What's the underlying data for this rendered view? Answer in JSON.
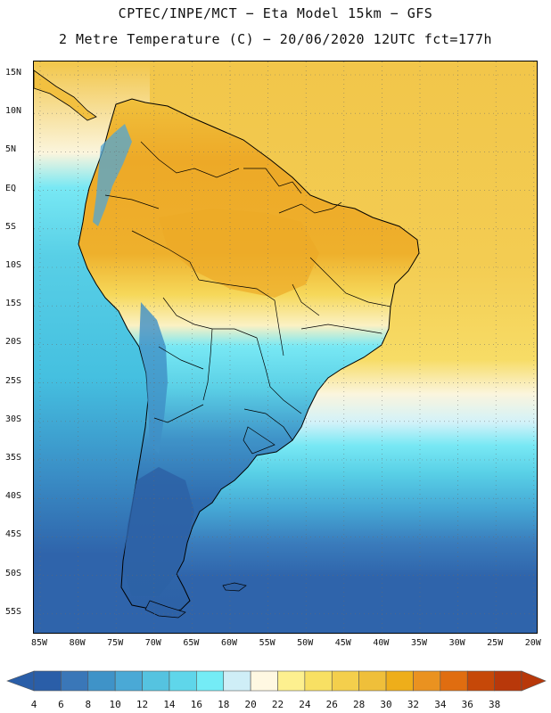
{
  "title_line1": "CPTEC/INPE/MCT −  Eta Model 15km − GFS",
  "title_line2": "2 Metre Temperature (C) − 20/06/2020 12UTC fct=177h",
  "lat_labels": [
    "15N",
    "10N",
    "5N",
    "EQ",
    "5S",
    "10S",
    "15S",
    "20S",
    "25S",
    "30S",
    "35S",
    "40S",
    "45S",
    "50S",
    "55S"
  ],
  "lon_labels": [
    "85W",
    "80W",
    "75W",
    "70W",
    "65W",
    "60W",
    "55W",
    "50W",
    "45W",
    "40W",
    "35W",
    "30W",
    "25W",
    "20W"
  ],
  "colorbar": {
    "values": [
      4,
      6,
      8,
      10,
      12,
      14,
      16,
      18,
      20,
      22,
      24,
      26,
      28,
      30,
      32,
      34,
      36,
      38
    ],
    "colors": [
      "#2a5ea8",
      "#3a77b8",
      "#3f93c8",
      "#4aa9d6",
      "#55c3e0",
      "#5fd6ea",
      "#74ecf6",
      "#cfeef7",
      "#fff8e2",
      "#fdf08f",
      "#f8e063",
      "#f4cf4c",
      "#efbf3a",
      "#eeae1a",
      "#ea9220",
      "#e06d10",
      "#c64808",
      "#b8380a"
    ],
    "below_color": "#2a5ea8",
    "above_color": "#b8380a"
  },
  "map_colors": {
    "ocean_south": "#2f64ab",
    "ocean_s2": "#3a7cbc",
    "ocean_s3": "#45a8d5",
    "ocean_mid": "#58cfe6",
    "ocean_cyan": "#78e8f4",
    "ocean_pale": "#d2f2f9",
    "ocean_cream": "#fbf5dd",
    "ocean_yellow": "#f7dc66",
    "ocean_north": "#f2c64a",
    "land_north": "#f2c040",
    "land_amazon": "#eda927",
    "land_andes": "#4fa6d6",
    "land_patagonia": "#2d61a6",
    "land_central": "#5bd0e6",
    "land_south_br": "#7ae6f2"
  }
}
